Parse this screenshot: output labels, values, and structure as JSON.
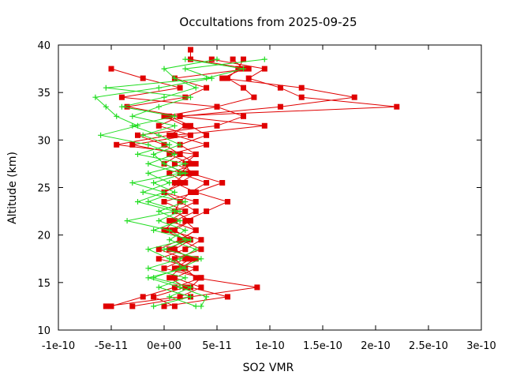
{
  "chart_data": {
    "type": "line",
    "title": "Occultations from 2025-09-25",
    "xlabel": "SO2 VMR",
    "ylabel": "Altitude (km)",
    "xlim": [
      -1e-10,
      3e-10
    ],
    "ylim": [
      10,
      40
    ],
    "x_ticks": [
      "-1e-10",
      "-5e-11",
      "0e+00",
      "5e-11",
      "1e-10",
      "1.5e-10",
      "2e-10",
      "2.5e-10",
      "3e-10"
    ],
    "x_tick_values": [
      -1e-10,
      -5e-11,
      0,
      5e-11,
      1e-10,
      1.5e-10,
      2e-10,
      2.5e-10,
      3e-10
    ],
    "y_ticks": [
      "10",
      "15",
      "20",
      "25",
      "30",
      "35",
      "40"
    ],
    "y_tick_values": [
      10,
      15,
      20,
      25,
      30,
      35,
      40
    ],
    "grid": false,
    "legend": "none",
    "colors": {
      "red_series": "#e00000",
      "green_series": "#22dd22"
    },
    "series": [
      {
        "marker": "square",
        "color": "#e00000",
        "points": [
          [
            -5.5e-11,
            12.5
          ],
          [
            1.5e-11,
            13.5
          ],
          [
            3.5e-11,
            14.5
          ],
          [
            1e-11,
            15.5
          ],
          [
            3e-11,
            16.5
          ],
          [
            -5e-12,
            17.5
          ],
          [
            2e-11,
            18.5
          ],
          [
            3.5e-11,
            19.5
          ],
          [
            5e-12,
            20.5
          ],
          [
            2.5e-11,
            21.5
          ],
          [
            1e-11,
            22.5
          ],
          [
            3e-11,
            23.5
          ],
          [
            0.0,
            24.5
          ],
          [
            1.5e-11,
            25.5
          ],
          [
            3e-11,
            26.5
          ],
          [
            1e-11,
            27.5
          ],
          [
            3e-11,
            28.5
          ],
          [
            -4.5e-11,
            29.5
          ],
          [
            5e-12,
            30.5
          ],
          [
            2e-11,
            31.5
          ],
          [
            0.0,
            32.5
          ],
          [
            5e-11,
            33.5
          ],
          [
            -4e-11,
            34.5
          ],
          [
            1.5e-11,
            35.5
          ],
          [
            -2e-11,
            36.5
          ],
          [
            -5e-11,
            37.5
          ]
        ]
      },
      {
        "marker": "square",
        "color": "#e00000",
        "points": [
          [
            -5e-11,
            12.5
          ],
          [
            -2e-11,
            13.5
          ],
          [
            1e-11,
            14.5
          ],
          [
            3.5e-11,
            15.5
          ],
          [
            0.0,
            16.5
          ],
          [
            2e-11,
            17.5
          ],
          [
            -5e-12,
            18.5
          ],
          [
            1.5e-11,
            19.5
          ],
          [
            3e-11,
            20.5
          ],
          [
            5e-12,
            21.5
          ],
          [
            2e-11,
            22.5
          ],
          [
            0.0,
            23.5
          ],
          [
            3e-11,
            24.5
          ],
          [
            1e-11,
            25.5
          ],
          [
            2e-11,
            26.5
          ],
          [
            0.0,
            27.5
          ],
          [
            1.5e-11,
            28.5
          ],
          [
            -3e-11,
            29.5
          ],
          [
            2.5e-11,
            30.5
          ],
          [
            -5e-12,
            31.5
          ],
          [
            1.5e-11,
            32.5
          ],
          [
            -3.5e-11,
            33.5
          ],
          [
            2e-11,
            34.5
          ],
          [
            4e-11,
            35.5
          ],
          [
            1e-11,
            36.5
          ],
          [
            8e-11,
            37.5
          ],
          [
            2.5e-11,
            38.5
          ],
          [
            2.5e-11,
            39.5
          ]
        ]
      },
      {
        "marker": "square",
        "color": "#e00000",
        "points": [
          [
            -3e-11,
            12.5
          ],
          [
            2.5e-11,
            13.5
          ],
          [
            8.8e-11,
            14.5
          ],
          [
            3e-11,
            15.5
          ],
          [
            2e-11,
            16.5
          ],
          [
            1e-11,
            17.5
          ],
          [
            3.5e-11,
            18.5
          ],
          [
            1.5e-11,
            19.5
          ],
          [
            3e-11,
            20.5
          ],
          [
            2e-11,
            21.5
          ],
          [
            4e-11,
            22.5
          ],
          [
            6e-11,
            23.5
          ],
          [
            3e-11,
            24.5
          ],
          [
            5.5e-11,
            25.5
          ],
          [
            2.5e-11,
            26.5
          ],
          [
            2e-11,
            27.5
          ],
          [
            3e-11,
            28.5
          ],
          [
            1.5e-11,
            29.5
          ],
          [
            4e-11,
            30.5
          ],
          [
            2.5e-11,
            31.5
          ],
          [
            5e-12,
            32.5
          ],
          [
            2.2e-10,
            33.5
          ],
          [
            1.3e-10,
            34.5
          ],
          [
            1.1e-10,
            35.5
          ],
          [
            8e-11,
            36.5
          ],
          [
            9.5e-11,
            37.5
          ],
          [
            4.5e-11,
            38.5
          ]
        ]
      },
      {
        "marker": "square",
        "color": "#e00000",
        "points": [
          [
            0.0,
            12.5
          ],
          [
            6e-11,
            13.5
          ],
          [
            2.5e-11,
            14.5
          ],
          [
            3.5e-11,
            15.5
          ],
          [
            1e-11,
            16.5
          ],
          [
            2.5e-11,
            17.5
          ],
          [
            1e-11,
            18.5
          ],
          [
            2.5e-11,
            19.5
          ],
          [
            1e-11,
            20.5
          ],
          [
            2.5e-11,
            21.5
          ],
          [
            1e-11,
            22.5
          ],
          [
            1.5e-11,
            23.5
          ],
          [
            2.5e-11,
            24.5
          ],
          [
            4e-11,
            25.5
          ],
          [
            1.5e-11,
            26.5
          ],
          [
            2.5e-11,
            27.5
          ],
          [
            5e-12,
            28.5
          ],
          [
            4e-11,
            29.5
          ],
          [
            1e-11,
            30.5
          ],
          [
            9.5e-11,
            31.5
          ],
          [
            1.5e-11,
            32.5
          ],
          [
            1.1e-10,
            33.5
          ],
          [
            1.8e-10,
            34.5
          ],
          [
            1.3e-10,
            35.5
          ],
          [
            5.5e-11,
            36.5
          ],
          [
            7.5e-11,
            37.5
          ],
          [
            6.5e-11,
            38.5
          ]
        ]
      },
      {
        "marker": "square",
        "color": "#e00000",
        "points": [
          [
            1e-11,
            12.5
          ],
          [
            -1e-11,
            13.5
          ],
          [
            2e-11,
            14.5
          ],
          [
            5e-12,
            15.5
          ],
          [
            1.5e-11,
            16.5
          ],
          [
            3e-11,
            17.5
          ],
          [
            5e-12,
            18.5
          ],
          [
            2e-11,
            19.5
          ],
          [
            0.0,
            20.5
          ],
          [
            1e-11,
            21.5
          ],
          [
            3e-11,
            22.5
          ],
          [
            1.5e-11,
            23.5
          ],
          [
            0.0,
            24.5
          ],
          [
            2e-11,
            25.5
          ],
          [
            5e-12,
            26.5
          ],
          [
            3e-11,
            27.5
          ],
          [
            1.5e-11,
            28.5
          ],
          [
            0.0,
            29.5
          ],
          [
            -2.5e-11,
            30.5
          ],
          [
            5e-11,
            31.5
          ],
          [
            7.5e-11,
            32.5
          ],
          [
            5e-11,
            33.5
          ],
          [
            8.5e-11,
            34.5
          ],
          [
            7.5e-11,
            35.5
          ],
          [
            6e-11,
            36.5
          ],
          [
            7e-11,
            37.5
          ],
          [
            7.5e-11,
            38.5
          ]
        ]
      },
      {
        "marker": "plus",
        "color": "#22dd22",
        "points": [
          [
            3.5e-11,
            12.5
          ],
          [
            4e-11,
            13.5
          ],
          [
            1.5e-11,
            14.5
          ],
          [
            -1.5e-11,
            15.5
          ],
          [
            2e-11,
            16.5
          ],
          [
            5e-12,
            17.5
          ],
          [
            -1.5e-11,
            18.5
          ],
          [
            2e-11,
            19.5
          ],
          [
            5e-12,
            20.5
          ],
          [
            -3.5e-11,
            21.5
          ],
          [
            1e-11,
            22.5
          ],
          [
            -2.5e-11,
            23.5
          ],
          [
            0.0,
            24.5
          ],
          [
            -3e-11,
            25.5
          ],
          [
            1.5e-11,
            26.5
          ],
          [
            -1.5e-11,
            27.5
          ],
          [
            1e-11,
            28.5
          ],
          [
            -1.5e-11,
            29.5
          ],
          [
            -6e-11,
            30.5
          ],
          [
            -2.5e-11,
            31.5
          ],
          [
            -4.5e-11,
            32.5
          ],
          [
            -5.5e-11,
            33.5
          ],
          [
            -6.5e-11,
            34.5
          ],
          [
            -5e-12,
            35.5
          ],
          [
            4.5e-11,
            36.5
          ],
          [
            2e-11,
            37.5
          ],
          [
            9.5e-11,
            38.5
          ]
        ]
      },
      {
        "marker": "plus",
        "color": "#22dd22",
        "points": [
          [
            3e-11,
            12.5
          ],
          [
            5e-12,
            13.5
          ],
          [
            2.5e-11,
            14.5
          ],
          [
            -1e-11,
            15.5
          ],
          [
            1.5e-11,
            16.5
          ],
          [
            3.5e-11,
            17.5
          ],
          [
            0.0,
            18.5
          ],
          [
            2.5e-11,
            19.5
          ],
          [
            -1e-11,
            20.5
          ],
          [
            1.5e-11,
            21.5
          ],
          [
            -5e-12,
            22.5
          ],
          [
            2e-11,
            23.5
          ],
          [
            -2e-11,
            24.5
          ],
          [
            5e-12,
            25.5
          ],
          [
            -1.5e-11,
            26.5
          ],
          [
            2e-11,
            27.5
          ],
          [
            -2.5e-11,
            28.5
          ],
          [
            5e-12,
            29.5
          ],
          [
            -2e-11,
            30.5
          ],
          [
            1e-11,
            31.5
          ],
          [
            -3e-11,
            32.5
          ],
          [
            -5e-12,
            33.5
          ],
          [
            2.5e-11,
            34.5
          ],
          [
            -5.5e-11,
            35.5
          ],
          [
            4e-11,
            36.5
          ],
          [
            7.5e-11,
            37.5
          ],
          [
            2e-11,
            38.5
          ]
        ]
      },
      {
        "marker": "plus",
        "color": "#22dd22",
        "points": [
          [
            -1e-11,
            12.5
          ],
          [
            2.5e-11,
            13.5
          ],
          [
            -5e-12,
            14.5
          ],
          [
            2e-11,
            15.5
          ],
          [
            -1.5e-11,
            16.5
          ],
          [
            1.5e-11,
            17.5
          ],
          [
            3e-11,
            18.5
          ],
          [
            5e-12,
            19.5
          ],
          [
            2e-11,
            20.5
          ],
          [
            -5e-12,
            21.5
          ],
          [
            1.5e-11,
            22.5
          ],
          [
            -1.5e-11,
            23.5
          ],
          [
            1e-11,
            24.5
          ],
          [
            -1e-11,
            25.5
          ],
          [
            2e-11,
            26.5
          ],
          [
            0.0,
            27.5
          ],
          [
            -1e-11,
            28.5
          ],
          [
            1.5e-11,
            29.5
          ],
          [
            -5e-12,
            30.5
          ],
          [
            -3e-11,
            31.5
          ],
          [
            1e-11,
            32.5
          ],
          [
            -4e-11,
            33.5
          ],
          [
            0.0,
            34.5
          ],
          [
            3e-11,
            35.5
          ],
          [
            1e-11,
            36.5
          ],
          [
            0.0,
            37.5
          ],
          [
            5e-11,
            38.5
          ]
        ]
      }
    ]
  }
}
